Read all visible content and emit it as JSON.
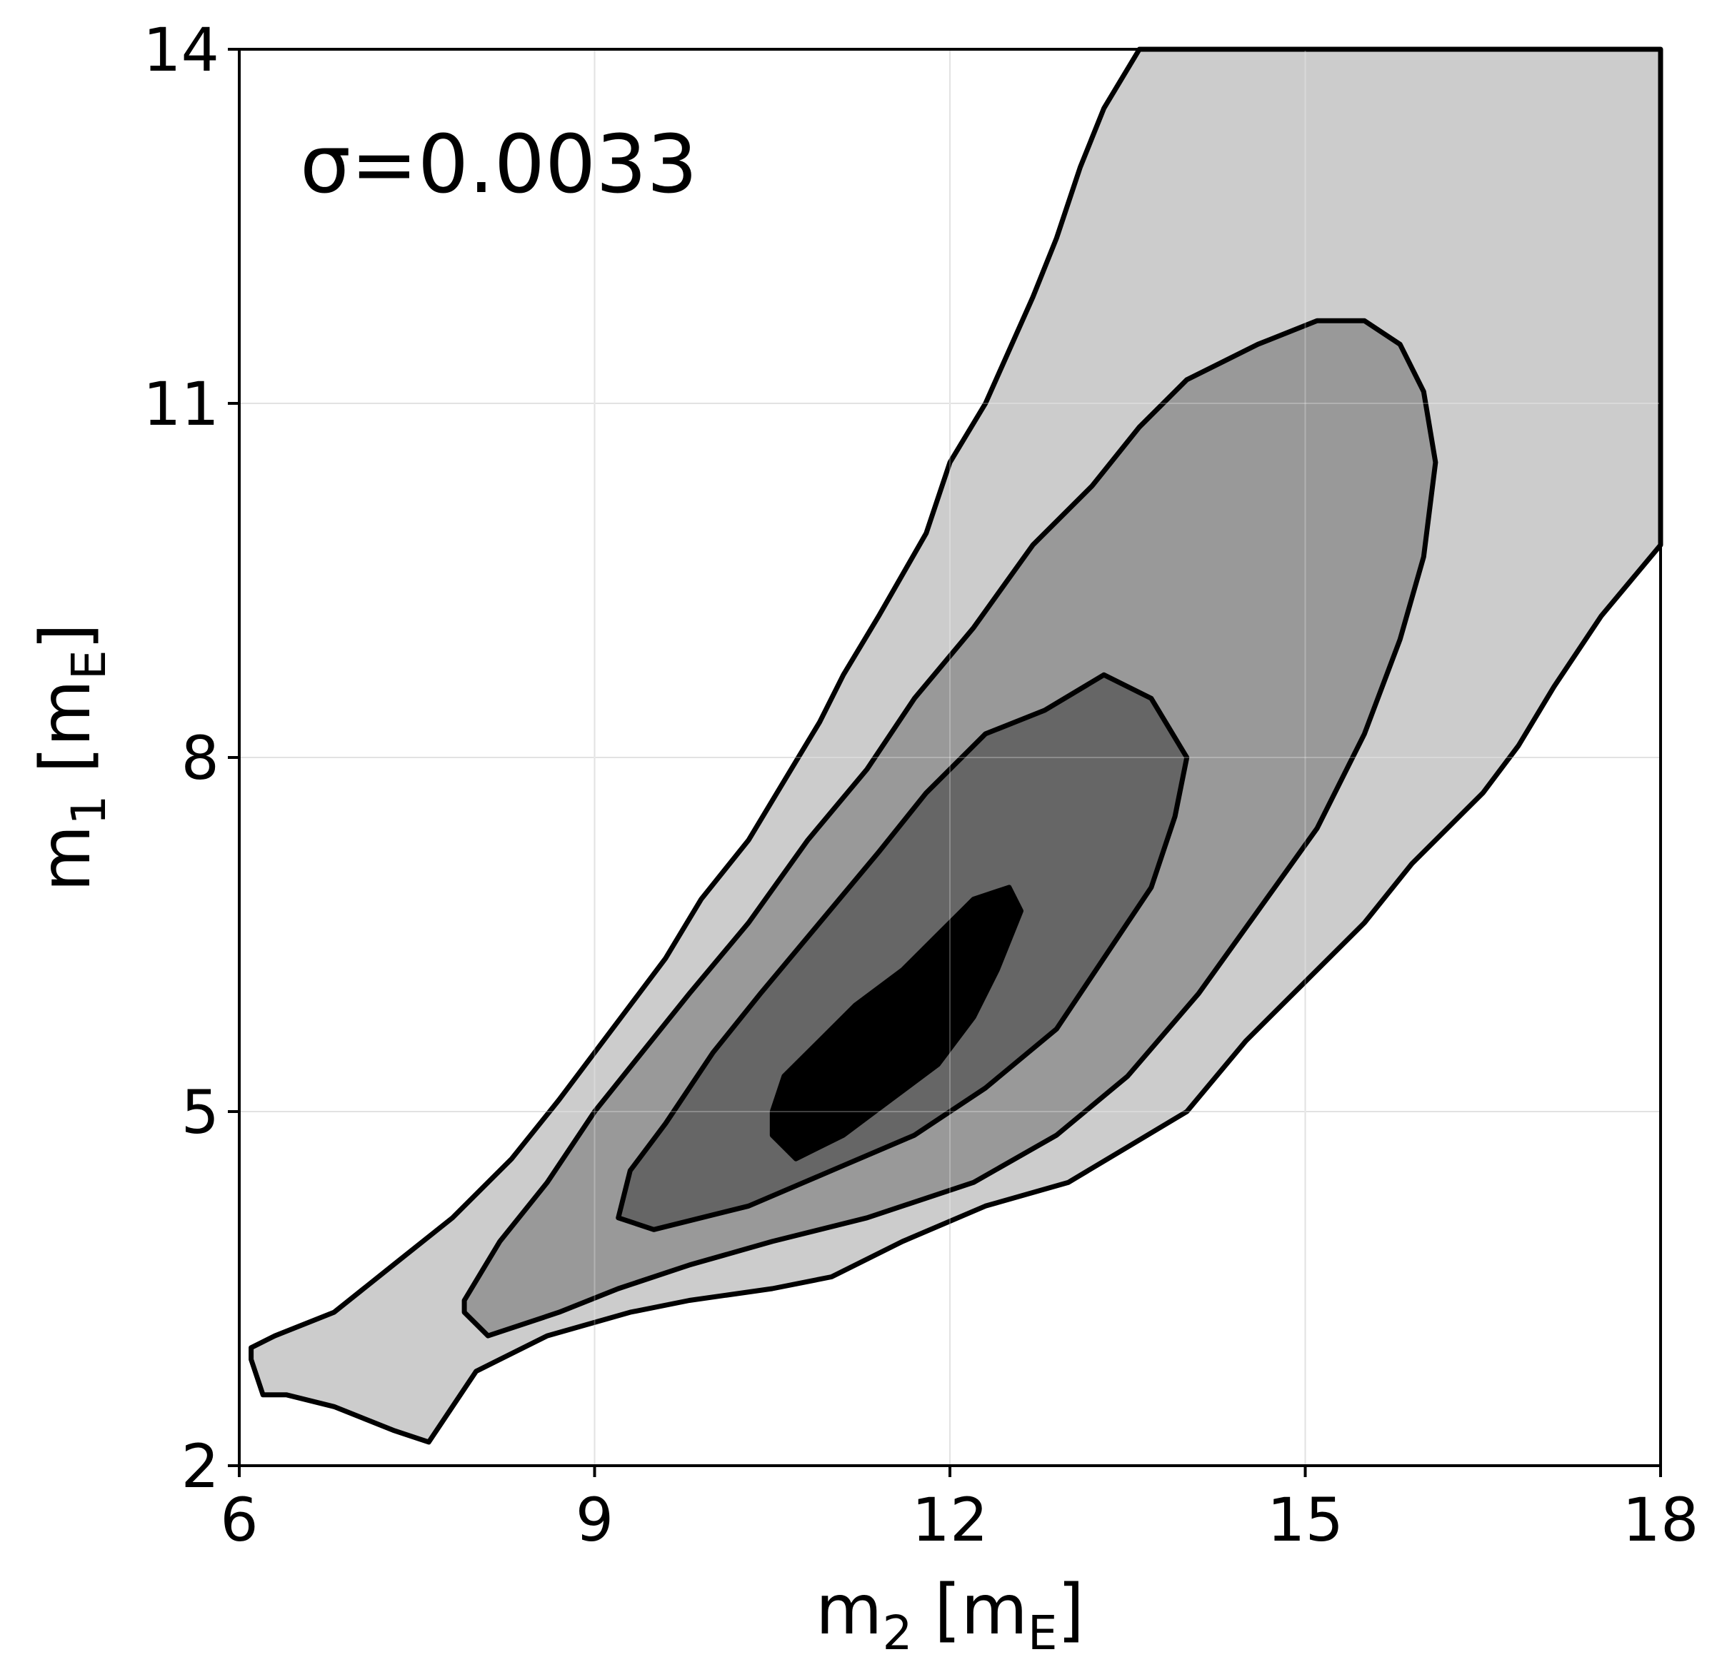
{
  "chart_data": {
    "type": "contour",
    "xlabel": {
      "main": "m",
      "sub": "2",
      "unit_open": " [m",
      "unit_sub": "E",
      "unit_close": "]"
    },
    "ylabel": {
      "main": "m",
      "sub": "1",
      "unit_open": " [m",
      "unit_sub": "E",
      "unit_close": "]"
    },
    "annotation": "σ=0.0033",
    "xlim": [
      6,
      18
    ],
    "ylim": [
      2,
      14
    ],
    "xticks": [
      6,
      9,
      12,
      15,
      18
    ],
    "yticks": [
      2,
      5,
      8,
      11,
      14
    ],
    "xtick_labels": [
      "6",
      "9",
      "12",
      "15",
      "18"
    ],
    "ytick_labels": [
      "2",
      "5",
      "8",
      "11",
      "14"
    ],
    "grid": true,
    "fill_colors": [
      "#cccccc",
      "#999999",
      "#666666",
      "#000000"
    ],
    "line_color": "#000000",
    "contours": [
      {
        "level": 1,
        "points": [
          [
            6.1,
            3.0
          ],
          [
            6.3,
            3.1
          ],
          [
            6.8,
            3.3
          ],
          [
            7.3,
            3.7
          ],
          [
            7.8,
            4.1
          ],
          [
            8.3,
            4.6
          ],
          [
            8.7,
            5.1
          ],
          [
            9.0,
            5.5
          ],
          [
            9.3,
            5.9
          ],
          [
            9.6,
            6.3
          ],
          [
            9.9,
            6.8
          ],
          [
            10.3,
            7.3
          ],
          [
            10.6,
            7.8
          ],
          [
            10.9,
            8.3
          ],
          [
            11.1,
            8.7
          ],
          [
            11.4,
            9.2
          ],
          [
            11.8,
            9.9
          ],
          [
            12.0,
            10.5
          ],
          [
            12.3,
            11.0
          ],
          [
            12.7,
            11.9
          ],
          [
            12.9,
            12.4
          ],
          [
            13.1,
            13.0
          ],
          [
            13.3,
            13.5
          ],
          [
            13.6,
            14.0
          ],
          [
            18.0,
            14.0
          ],
          [
            18.0,
            9.8
          ],
          [
            17.5,
            9.2
          ],
          [
            17.1,
            8.6
          ],
          [
            16.8,
            8.1
          ],
          [
            16.5,
            7.7
          ],
          [
            15.9,
            7.1
          ],
          [
            15.5,
            6.6
          ],
          [
            15.0,
            6.1
          ],
          [
            14.5,
            5.6
          ],
          [
            14.0,
            5.0
          ],
          [
            13.5,
            4.7
          ],
          [
            13.0,
            4.4
          ],
          [
            12.3,
            4.2
          ],
          [
            11.6,
            3.9
          ],
          [
            11.0,
            3.6
          ],
          [
            10.5,
            3.5
          ],
          [
            9.8,
            3.4
          ],
          [
            9.3,
            3.3
          ],
          [
            8.6,
            3.1
          ],
          [
            8.0,
            2.8
          ],
          [
            7.6,
            2.2
          ],
          [
            7.3,
            2.3
          ],
          [
            6.8,
            2.5
          ],
          [
            6.4,
            2.6
          ],
          [
            6.2,
            2.6
          ],
          [
            6.1,
            2.9
          ]
        ]
      },
      {
        "level": 2,
        "points": [
          [
            7.9,
            3.4
          ],
          [
            8.2,
            3.9
          ],
          [
            8.6,
            4.4
          ],
          [
            9.0,
            5.0
          ],
          [
            9.4,
            5.5
          ],
          [
            9.8,
            6.0
          ],
          [
            10.3,
            6.6
          ],
          [
            10.8,
            7.3
          ],
          [
            11.3,
            7.9
          ],
          [
            11.7,
            8.5
          ],
          [
            12.2,
            9.1
          ],
          [
            12.7,
            9.8
          ],
          [
            13.2,
            10.3
          ],
          [
            13.6,
            10.8
          ],
          [
            14.0,
            11.2
          ],
          [
            14.6,
            11.5
          ],
          [
            15.1,
            11.7
          ],
          [
            15.5,
            11.7
          ],
          [
            15.8,
            11.5
          ],
          [
            16.0,
            11.1
          ],
          [
            16.1,
            10.5
          ],
          [
            16.0,
            9.7
          ],
          [
            15.8,
            9.0
          ],
          [
            15.5,
            8.2
          ],
          [
            15.1,
            7.4
          ],
          [
            14.6,
            6.7
          ],
          [
            14.1,
            6.0
          ],
          [
            13.5,
            5.3
          ],
          [
            12.9,
            4.8
          ],
          [
            12.2,
            4.4
          ],
          [
            11.3,
            4.1
          ],
          [
            10.5,
            3.9
          ],
          [
            9.8,
            3.7
          ],
          [
            9.2,
            3.5
          ],
          [
            8.7,
            3.3
          ],
          [
            8.1,
            3.1
          ],
          [
            7.9,
            3.3
          ]
        ]
      },
      {
        "level": 3,
        "points": [
          [
            9.2,
            4.1
          ],
          [
            9.3,
            4.5
          ],
          [
            9.6,
            4.9
          ],
          [
            10.0,
            5.5
          ],
          [
            10.4,
            6.0
          ],
          [
            10.9,
            6.6
          ],
          [
            11.4,
            7.2
          ],
          [
            11.8,
            7.7
          ],
          [
            12.3,
            8.2
          ],
          [
            12.8,
            8.4
          ],
          [
            13.3,
            8.7
          ],
          [
            13.7,
            8.5
          ],
          [
            14.0,
            8.0
          ],
          [
            13.9,
            7.5
          ],
          [
            13.7,
            6.9
          ],
          [
            13.3,
            6.3
          ],
          [
            12.9,
            5.7
          ],
          [
            12.3,
            5.2
          ],
          [
            11.7,
            4.8
          ],
          [
            11.0,
            4.5
          ],
          [
            10.3,
            4.2
          ],
          [
            9.5,
            4.0
          ],
          [
            9.2,
            4.1
          ]
        ]
      },
      {
        "level": 4,
        "points": [
          [
            10.5,
            5.0
          ],
          [
            10.6,
            5.3
          ],
          [
            10.9,
            5.6
          ],
          [
            11.2,
            5.9
          ],
          [
            11.6,
            6.2
          ],
          [
            11.9,
            6.5
          ],
          [
            12.2,
            6.8
          ],
          [
            12.5,
            6.9
          ],
          [
            12.6,
            6.7
          ],
          [
            12.4,
            6.2
          ],
          [
            12.2,
            5.8
          ],
          [
            11.9,
            5.4
          ],
          [
            11.5,
            5.1
          ],
          [
            11.1,
            4.8
          ],
          [
            10.7,
            4.6
          ],
          [
            10.5,
            4.8
          ]
        ]
      }
    ]
  }
}
